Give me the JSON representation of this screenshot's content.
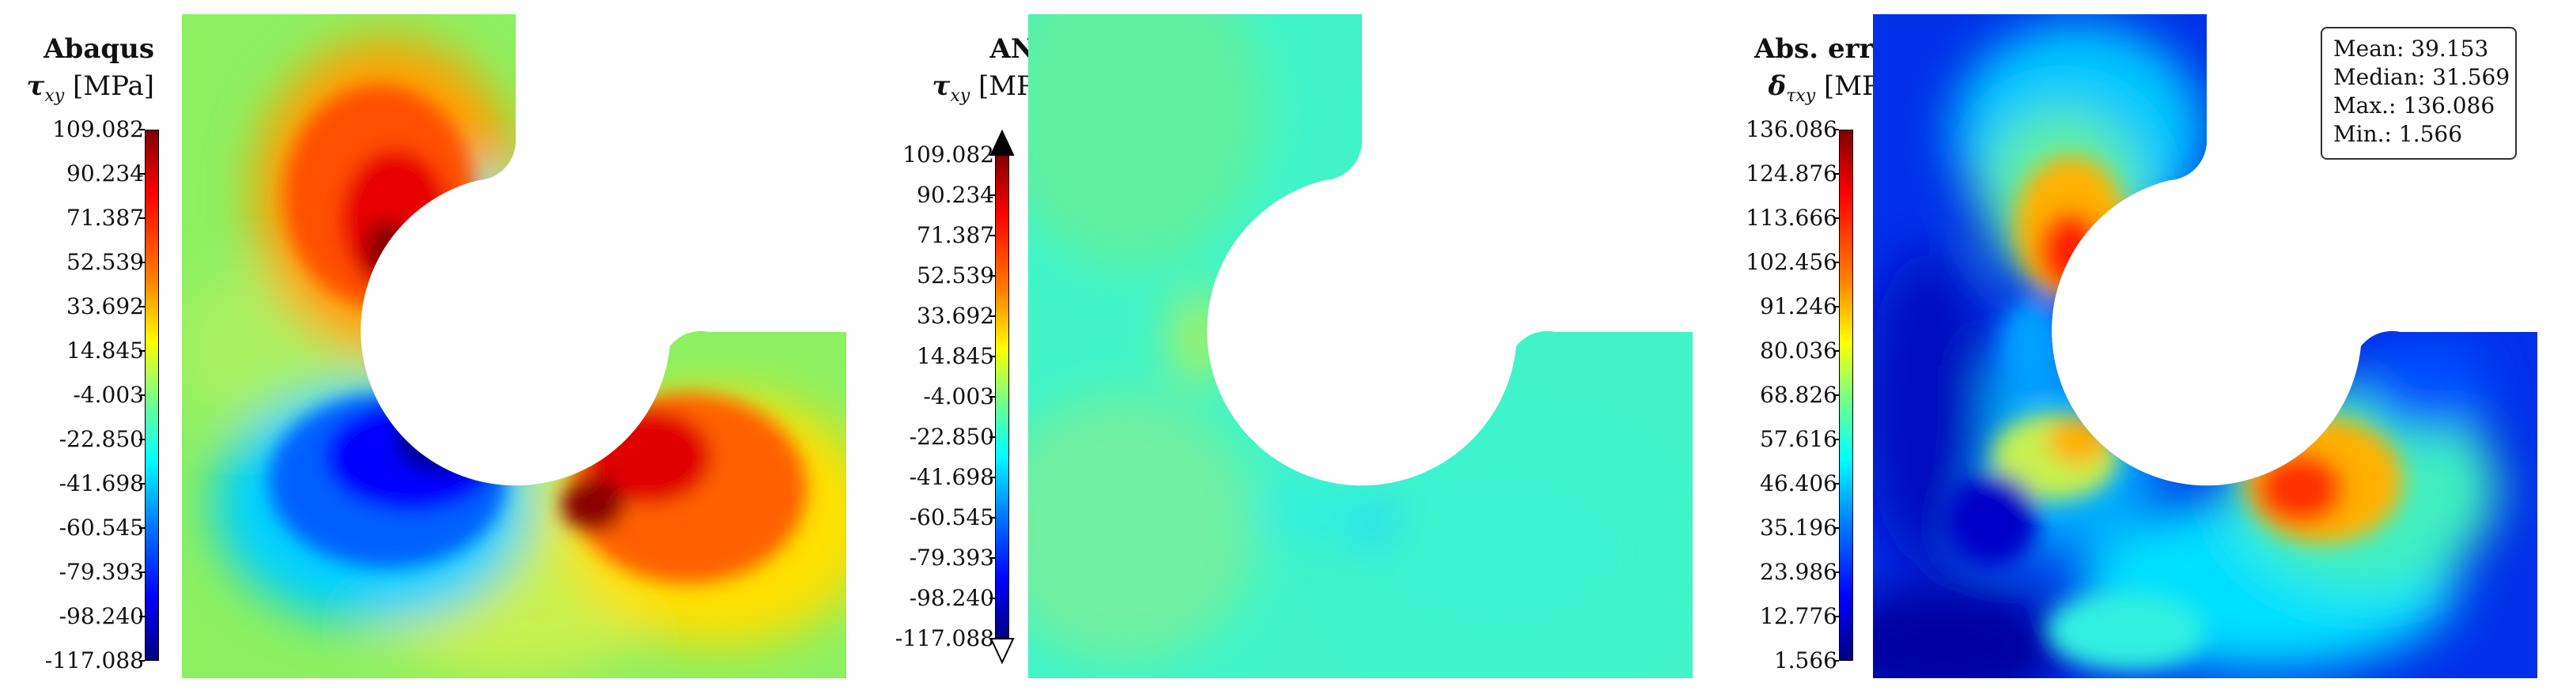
{
  "panels": [
    {
      "title": "Abaqus",
      "variable_symbol": "τ",
      "variable_subscript": "xy",
      "variable_unit": "[MPa]",
      "colorbar_ticks": [
        "109.082",
        "90.234",
        "71.387",
        "52.539",
        "33.692",
        "14.845",
        "-4.003",
        "-22.850",
        "-41.698",
        "-60.545",
        "-79.393",
        "-98.240",
        "-117.088"
      ]
    },
    {
      "title": "ANN",
      "variable_symbol": "τ",
      "variable_subscript": "xy",
      "variable_unit": "[MPa]",
      "colorbar_ticks": [
        "109.082",
        "90.234",
        "71.387",
        "52.539",
        "33.692",
        "14.845",
        "-4.003",
        "-22.850",
        "-41.698",
        "-60.545",
        "-79.393",
        "-98.240",
        "-117.088"
      ]
    },
    {
      "title": "Abs. error",
      "variable_symbol": "δ",
      "variable_subscript": "τxy",
      "variable_unit": "[MPa]",
      "colorbar_ticks": [
        "136.086",
        "124.876",
        "113.666",
        "102.456",
        "91.246",
        "80.036",
        "68.826",
        "57.616",
        "46.406",
        "35.196",
        "23.986",
        "12.776",
        "1.566"
      ]
    }
  ],
  "stats": {
    "mean": "Mean: 39.153",
    "median": "Median: 31.569",
    "max": "Max.: 136.086",
    "min": "Min.: 1.566"
  },
  "colors": {
    "jet": [
      "#00007f",
      "#0000ff",
      "#007fff",
      "#00ffff",
      "#7fff7f",
      "#ffff00",
      "#ff7f00",
      "#ff0000",
      "#7f0000"
    ]
  }
}
